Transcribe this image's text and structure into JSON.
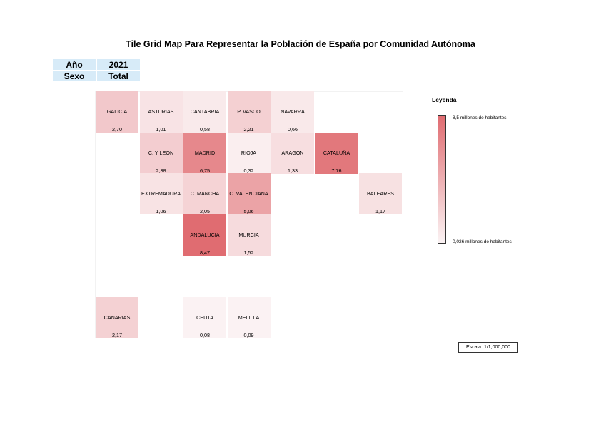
{
  "title": "Tile Grid Map Para Representar la Población de España por Comunidad Autónoma",
  "filters": [
    {
      "key": "Año",
      "value": "2021"
    },
    {
      "key": "Sexo",
      "value": "Total"
    }
  ],
  "legend": {
    "title": "Leyenda",
    "max_label": "8,5 millones de habitantes",
    "min_label": "0,026 millones de habitantes",
    "color_high": "#e06c71",
    "color_low": "#fbf3f4"
  },
  "scale_label": "Escala: 1/1,000,000",
  "chart_data": {
    "type": "heatmap",
    "value_unit": "millones de habitantes",
    "value_range": [
      0.026,
      8.5
    ],
    "tiles": [
      {
        "name": "GALICIA",
        "value": "2,70",
        "num": 2.7,
        "row": 0,
        "col": 0
      },
      {
        "name": "ASTURIAS",
        "value": "1,01",
        "num": 1.01,
        "row": 0,
        "col": 1
      },
      {
        "name": "CANTABRIA",
        "value": "0,58",
        "num": 0.58,
        "row": 0,
        "col": 2
      },
      {
        "name": "P. VASCO",
        "value": "2,21",
        "num": 2.21,
        "row": 0,
        "col": 3
      },
      {
        "name": "NAVARRA",
        "value": "0,66",
        "num": 0.66,
        "row": 0,
        "col": 4
      },
      {
        "name": "C. Y LEON",
        "value": "2,38",
        "num": 2.38,
        "row": 1,
        "col": 1
      },
      {
        "name": "MADRID",
        "value": "6,75",
        "num": 6.75,
        "row": 1,
        "col": 2
      },
      {
        "name": "RIOJA",
        "value": "0,32",
        "num": 0.32,
        "row": 1,
        "col": 3
      },
      {
        "name": "ARAGON",
        "value": "1,33",
        "num": 1.33,
        "row": 1,
        "col": 4
      },
      {
        "name": "CATALUÑA",
        "value": "7,76",
        "num": 7.76,
        "row": 1,
        "col": 5
      },
      {
        "name": "EXTREMADURA",
        "value": "1,06",
        "num": 1.06,
        "row": 2,
        "col": 1
      },
      {
        "name": "C. MANCHA",
        "value": "2,05",
        "num": 2.05,
        "row": 2,
        "col": 2
      },
      {
        "name": "C. VALENCIANA",
        "value": "5,06",
        "num": 5.06,
        "row": 2,
        "col": 3
      },
      {
        "name": "BALEARES",
        "value": "1,17",
        "num": 1.17,
        "row": 2,
        "col": 6
      },
      {
        "name": "ANDALUCIA",
        "value": "8,47",
        "num": 8.47,
        "row": 3,
        "col": 2
      },
      {
        "name": "MURCIA",
        "value": "1,52",
        "num": 1.52,
        "row": 3,
        "col": 3
      },
      {
        "name": "CANARIAS",
        "value": "2,17",
        "num": 2.17,
        "row": 5,
        "col": 0
      },
      {
        "name": "CEUTA",
        "value": "0,08",
        "num": 0.08,
        "row": 5,
        "col": 2
      },
      {
        "name": "MELILLA",
        "value": "0,09",
        "num": 0.09,
        "row": 5,
        "col": 3
      }
    ]
  }
}
